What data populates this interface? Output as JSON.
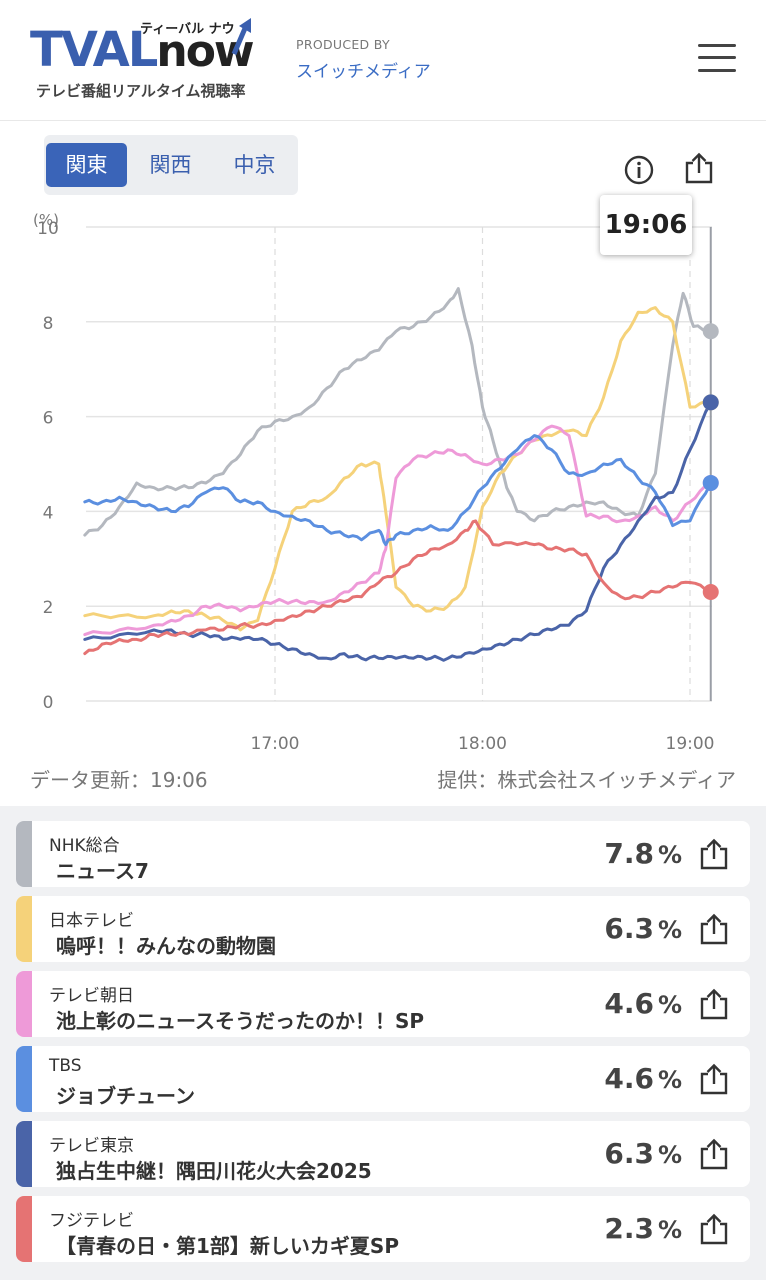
{
  "header": {
    "logo_tval": "TVAL",
    "logo_now": "now",
    "logo_kana": "ティーバル ナウ",
    "logo_sub": "テレビ番組リアルタイム視聴率",
    "produced_by": "PRODUCED BY",
    "producer": "スイッチメディア"
  },
  "regions": [
    {
      "label": "関東",
      "active": true
    },
    {
      "label": "関西",
      "active": false
    },
    {
      "label": "中京",
      "active": false
    }
  ],
  "icons": {
    "info": "info-icon",
    "share": "share-icon",
    "menu": "hamburger-menu-icon"
  },
  "tooltip_time": "19:06",
  "footer": {
    "updated": "データ更新：19:06",
    "provider": "提供：株式会社スイッチメディア"
  },
  "chart_data": {
    "type": "line",
    "ylabel": "(%)",
    "ylim": [
      0,
      10
    ],
    "y_ticks": [
      "0",
      "2",
      "4",
      "6",
      "8",
      "10"
    ],
    "x_ticks": [
      "17:00",
      "18:00",
      "19:00"
    ],
    "xlim": [
      "16:05",
      "19:06"
    ],
    "grid": true,
    "series": [
      {
        "name": "NHK総合",
        "color": "#b4b8bf",
        "points": [
          [
            "16:05",
            3.5
          ],
          [
            "16:10",
            3.7
          ],
          [
            "16:15",
            4.1
          ],
          [
            "16:20",
            4.6
          ],
          [
            "16:25",
            4.5
          ],
          [
            "16:30",
            4.5
          ],
          [
            "16:35",
            4.5
          ],
          [
            "16:40",
            4.6
          ],
          [
            "16:45",
            4.8
          ],
          [
            "16:50",
            5.2
          ],
          [
            "16:55",
            5.7
          ],
          [
            "17:00",
            5.9
          ],
          [
            "17:05",
            6.0
          ],
          [
            "17:10",
            6.2
          ],
          [
            "17:15",
            6.6
          ],
          [
            "17:20",
            7.0
          ],
          [
            "17:25",
            7.2
          ],
          [
            "17:30",
            7.4
          ],
          [
            "17:35",
            7.8
          ],
          [
            "17:40",
            7.9
          ],
          [
            "17:45",
            8.1
          ],
          [
            "17:50",
            8.4
          ],
          [
            "17:53",
            8.7
          ],
          [
            "17:57",
            7.5
          ],
          [
            "18:00",
            6.2
          ],
          [
            "18:03",
            5.5
          ],
          [
            "18:07",
            4.5
          ],
          [
            "18:10",
            4.0
          ],
          [
            "18:15",
            3.8
          ],
          [
            "18:20",
            4.0
          ],
          [
            "18:25",
            4.1
          ],
          [
            "18:30",
            4.2
          ],
          [
            "18:35",
            4.2
          ],
          [
            "18:40",
            4.0
          ],
          [
            "18:45",
            3.9
          ],
          [
            "18:50",
            4.8
          ],
          [
            "18:55",
            7.5
          ],
          [
            "18:58",
            8.6
          ],
          [
            "19:01",
            7.9
          ],
          [
            "19:06",
            7.8
          ]
        ]
      },
      {
        "name": "日本テレビ",
        "color": "#f5d27a",
        "points": [
          [
            "16:05",
            1.8
          ],
          [
            "16:15",
            1.8
          ],
          [
            "16:25",
            1.8
          ],
          [
            "16:30",
            1.9
          ],
          [
            "16:35",
            1.9
          ],
          [
            "16:40",
            1.8
          ],
          [
            "16:45",
            1.7
          ],
          [
            "16:50",
            1.5
          ],
          [
            "16:55",
            1.7
          ],
          [
            "17:00",
            2.8
          ],
          [
            "17:05",
            4.0
          ],
          [
            "17:10",
            4.2
          ],
          [
            "17:15",
            4.3
          ],
          [
            "17:20",
            4.7
          ],
          [
            "17:25",
            5.0
          ],
          [
            "17:30",
            5.0
          ],
          [
            "17:32",
            4.0
          ],
          [
            "17:35",
            2.4
          ],
          [
            "17:40",
            2.0
          ],
          [
            "17:45",
            1.9
          ],
          [
            "17:50",
            2.0
          ],
          [
            "17:55",
            2.4
          ],
          [
            "18:00",
            4.1
          ],
          [
            "18:05",
            4.8
          ],
          [
            "18:10",
            5.2
          ],
          [
            "18:15",
            5.5
          ],
          [
            "18:20",
            5.6
          ],
          [
            "18:25",
            5.7
          ],
          [
            "18:30",
            5.6
          ],
          [
            "18:35",
            6.4
          ],
          [
            "18:40",
            7.6
          ],
          [
            "18:45",
            8.2
          ],
          [
            "18:50",
            8.3
          ],
          [
            "18:55",
            8.0
          ],
          [
            "19:00",
            6.2
          ],
          [
            "19:06",
            6.3
          ]
        ]
      },
      {
        "name": "テレビ朝日",
        "color": "#ee9ad8",
        "points": [
          [
            "16:05",
            1.4
          ],
          [
            "16:15",
            1.5
          ],
          [
            "16:25",
            1.6
          ],
          [
            "16:30",
            1.7
          ],
          [
            "16:35",
            1.8
          ],
          [
            "16:40",
            2.0
          ],
          [
            "16:45",
            2.0
          ],
          [
            "16:50",
            1.9
          ],
          [
            "16:55",
            2.0
          ],
          [
            "17:00",
            2.1
          ],
          [
            "17:05",
            2.1
          ],
          [
            "17:10",
            2.1
          ],
          [
            "17:15",
            2.1
          ],
          [
            "17:20",
            2.3
          ],
          [
            "17:25",
            2.5
          ],
          [
            "17:30",
            2.7
          ],
          [
            "17:32",
            3.2
          ],
          [
            "17:35",
            4.7
          ],
          [
            "17:40",
            5.1
          ],
          [
            "17:45",
            5.2
          ],
          [
            "17:50",
            5.3
          ],
          [
            "17:55",
            5.2
          ],
          [
            "18:00",
            5.0
          ],
          [
            "18:05",
            5.1
          ],
          [
            "18:10",
            5.2
          ],
          [
            "18:15",
            5.5
          ],
          [
            "18:20",
            5.8
          ],
          [
            "18:25",
            5.6
          ],
          [
            "18:30",
            3.9
          ],
          [
            "18:35",
            3.9
          ],
          [
            "18:40",
            3.8
          ],
          [
            "18:45",
            3.9
          ],
          [
            "18:50",
            4.1
          ],
          [
            "18:55",
            3.8
          ],
          [
            "19:00",
            4.2
          ],
          [
            "19:06",
            4.6
          ]
        ]
      },
      {
        "name": "TBS",
        "color": "#5b8fe0",
        "points": [
          [
            "16:05",
            4.2
          ],
          [
            "16:10",
            4.2
          ],
          [
            "16:15",
            4.3
          ],
          [
            "16:20",
            4.2
          ],
          [
            "16:25",
            4.1
          ],
          [
            "16:30",
            4.0
          ],
          [
            "16:35",
            4.1
          ],
          [
            "16:40",
            4.4
          ],
          [
            "16:45",
            4.5
          ],
          [
            "16:50",
            4.2
          ],
          [
            "16:55",
            4.2
          ],
          [
            "17:00",
            4.0
          ],
          [
            "17:05",
            3.9
          ],
          [
            "17:10",
            3.8
          ],
          [
            "17:15",
            3.6
          ],
          [
            "17:20",
            3.5
          ],
          [
            "17:25",
            3.4
          ],
          [
            "17:30",
            3.6
          ],
          [
            "17:32",
            3.3
          ],
          [
            "17:35",
            3.5
          ],
          [
            "17:40",
            3.6
          ],
          [
            "17:45",
            3.7
          ],
          [
            "17:50",
            3.6
          ],
          [
            "17:55",
            4.0
          ],
          [
            "18:00",
            4.5
          ],
          [
            "18:05",
            4.9
          ],
          [
            "18:10",
            5.3
          ],
          [
            "18:15",
            5.6
          ],
          [
            "18:20",
            5.3
          ],
          [
            "18:25",
            4.8
          ],
          [
            "18:30",
            4.8
          ],
          [
            "18:35",
            5.0
          ],
          [
            "18:40",
            5.1
          ],
          [
            "18:45",
            4.7
          ],
          [
            "18:50",
            4.4
          ],
          [
            "18:55",
            3.7
          ],
          [
            "19:00",
            3.8
          ],
          [
            "19:06",
            4.6
          ]
        ]
      },
      {
        "name": "テレビ東京",
        "color": "#4a64a8",
        "points": [
          [
            "16:05",
            1.3
          ],
          [
            "16:15",
            1.4
          ],
          [
            "16:25",
            1.5
          ],
          [
            "16:30",
            1.5
          ],
          [
            "16:35",
            1.4
          ],
          [
            "16:40",
            1.4
          ],
          [
            "16:45",
            1.3
          ],
          [
            "16:50",
            1.3
          ],
          [
            "16:55",
            1.3
          ],
          [
            "17:00",
            1.2
          ],
          [
            "17:05",
            1.1
          ],
          [
            "17:10",
            1.0
          ],
          [
            "17:15",
            0.9
          ],
          [
            "17:20",
            1.0
          ],
          [
            "17:25",
            0.9
          ],
          [
            "17:30",
            0.9
          ],
          [
            "17:35",
            0.9
          ],
          [
            "17:40",
            0.9
          ],
          [
            "17:45",
            0.9
          ],
          [
            "17:50",
            0.9
          ],
          [
            "17:55",
            1.0
          ],
          [
            "18:00",
            1.1
          ],
          [
            "18:05",
            1.2
          ],
          [
            "18:10",
            1.3
          ],
          [
            "18:15",
            1.4
          ],
          [
            "18:20",
            1.5
          ],
          [
            "18:25",
            1.6
          ],
          [
            "18:30",
            1.9
          ],
          [
            "18:35",
            2.8
          ],
          [
            "18:40",
            3.3
          ],
          [
            "18:45",
            3.8
          ],
          [
            "18:50",
            4.3
          ],
          [
            "18:55",
            4.4
          ],
          [
            "19:00",
            5.3
          ],
          [
            "19:06",
            6.3
          ]
        ]
      },
      {
        "name": "フジテレビ",
        "color": "#e57373",
        "points": [
          [
            "16:05",
            1.0
          ],
          [
            "16:10",
            1.2
          ],
          [
            "16:15",
            1.3
          ],
          [
            "16:20",
            1.3
          ],
          [
            "16:25",
            1.4
          ],
          [
            "16:30",
            1.4
          ],
          [
            "16:35",
            1.4
          ],
          [
            "16:40",
            1.5
          ],
          [
            "16:45",
            1.5
          ],
          [
            "16:50",
            1.6
          ],
          [
            "16:55",
            1.6
          ],
          [
            "17:00",
            1.7
          ],
          [
            "17:05",
            1.8
          ],
          [
            "17:10",
            1.9
          ],
          [
            "17:15",
            2.0
          ],
          [
            "17:20",
            2.1
          ],
          [
            "17:25",
            2.2
          ],
          [
            "17:30",
            2.5
          ],
          [
            "17:35",
            2.7
          ],
          [
            "17:40",
            3.0
          ],
          [
            "17:45",
            3.2
          ],
          [
            "17:50",
            3.3
          ],
          [
            "17:55",
            3.6
          ],
          [
            "17:58",
            3.8
          ],
          [
            "18:03",
            3.3
          ],
          [
            "18:10",
            3.3
          ],
          [
            "18:15",
            3.3
          ],
          [
            "18:20",
            3.2
          ],
          [
            "18:25",
            3.2
          ],
          [
            "18:30",
            3.1
          ],
          [
            "18:35",
            2.5
          ],
          [
            "18:40",
            2.2
          ],
          [
            "18:45",
            2.2
          ],
          [
            "18:50",
            2.3
          ],
          [
            "18:55",
            2.4
          ],
          [
            "19:00",
            2.5
          ],
          [
            "19:06",
            2.3
          ]
        ]
      }
    ]
  },
  "programs": [
    {
      "channel": "NHK総合",
      "title": "ニュース7",
      "rating": "7.8",
      "unit": "%",
      "color": "#b4b8bf"
    },
    {
      "channel": "日本テレビ",
      "title": "嗚呼！！みんなの動物園",
      "rating": "6.3",
      "unit": "%",
      "color": "#f5d27a"
    },
    {
      "channel": "テレビ朝日",
      "title": "池上彰のニュースそうだったのか！！SP",
      "rating": "4.6",
      "unit": "%",
      "color": "#ee9ad8"
    },
    {
      "channel": "TBS",
      "title": "ジョブチューン",
      "rating": "4.6",
      "unit": "%",
      "color": "#5b8fe0"
    },
    {
      "channel": "テレビ東京",
      "title": "独占生中継！隅田川花火大会2025",
      "rating": "6.3",
      "unit": "%",
      "color": "#4a64a8"
    },
    {
      "channel": "フジテレビ",
      "title": "【青春の日・第1部】新しいカギ夏SP",
      "rating": "2.3",
      "unit": "%",
      "color": "#e57373"
    }
  ]
}
